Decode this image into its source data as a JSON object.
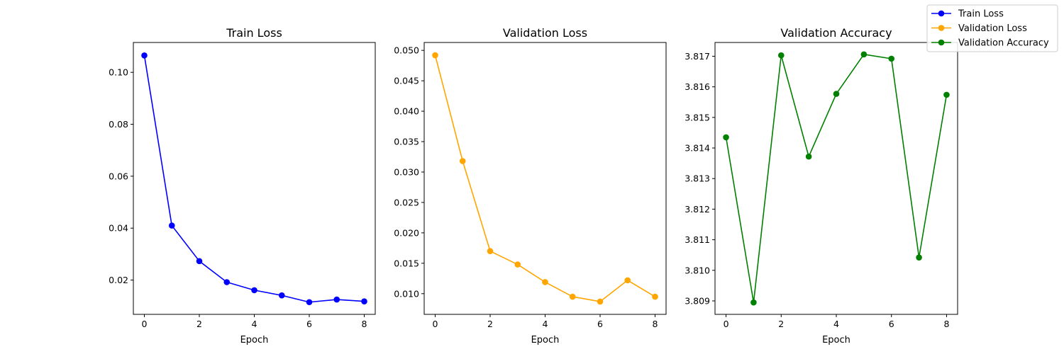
{
  "chart_data": [
    {
      "type": "line",
      "title": "Train Loss",
      "xlabel": "Epoch",
      "ylabel": "",
      "x": [
        0,
        1,
        2,
        3,
        4,
        5,
        6,
        7,
        8
      ],
      "series": [
        {
          "name": "Train Loss",
          "color": "#0000ff",
          "values": [
            0.1065,
            0.041,
            0.0273,
            0.0192,
            0.0161,
            0.0141,
            0.0115,
            0.0125,
            0.0118
          ]
        }
      ],
      "xlim": [
        -0.4,
        8.4
      ],
      "ylim": [
        0.0068,
        0.1115
      ],
      "xticks": [
        0,
        2,
        4,
        6,
        8
      ],
      "yticks": [
        0.02,
        0.04,
        0.06,
        0.08,
        0.1
      ],
      "ytick_labels": [
        "0.02",
        "0.04",
        "0.06",
        "0.08",
        "0.10"
      ],
      "grid": false
    },
    {
      "type": "line",
      "title": "Validation Loss",
      "xlabel": "Epoch",
      "ylabel": "",
      "x": [
        0,
        1,
        2,
        3,
        4,
        5,
        6,
        7,
        8
      ],
      "series": [
        {
          "name": "Validation Loss",
          "color": "#ffa500",
          "values": [
            0.0492,
            0.0318,
            0.017,
            0.0148,
            0.0119,
            0.0095,
            0.0087,
            0.0122,
            0.0095
          ]
        }
      ],
      "xlim": [
        -0.4,
        8.4
      ],
      "ylim": [
        0.0066,
        0.0513
      ],
      "xticks": [
        0,
        2,
        4,
        6,
        8
      ],
      "yticks": [
        0.01,
        0.015,
        0.02,
        0.025,
        0.03,
        0.035,
        0.04,
        0.045,
        0.05
      ],
      "ytick_labels": [
        "0.010",
        "0.015",
        "0.020",
        "0.025",
        "0.030",
        "0.035",
        "0.040",
        "0.045",
        "0.050"
      ],
      "grid": false
    },
    {
      "type": "line",
      "title": "Validation Accuracy",
      "xlabel": "Epoch",
      "ylabel": "",
      "x": [
        0,
        1,
        2,
        3,
        4,
        5,
        6,
        7,
        8
      ],
      "series": [
        {
          "name": "Validation Accuracy",
          "color": "#008000",
          "values": [
            3.81435,
            3.80895,
            3.81703,
            3.81372,
            3.81577,
            3.81706,
            3.81692,
            3.81042,
            3.81574
          ]
        }
      ],
      "xlim": [
        -0.4,
        8.4
      ],
      "ylim": [
        3.80856,
        3.81745
      ],
      "xticks": [
        0,
        2,
        4,
        6,
        8
      ],
      "yticks": [
        3.809,
        3.81,
        3.811,
        3.812,
        3.813,
        3.814,
        3.815,
        3.816,
        3.817
      ],
      "ytick_labels": [
        "3.809",
        "3.810",
        "3.811",
        "3.812",
        "3.813",
        "3.814",
        "3.815",
        "3.816",
        "3.817"
      ],
      "grid": false
    }
  ],
  "legend": {
    "placement": "top-right",
    "entries": [
      {
        "label": "Train Loss",
        "color": "#0000ff"
      },
      {
        "label": "Validation Loss",
        "color": "#ffa500"
      },
      {
        "label": "Validation Accuracy",
        "color": "#008000"
      }
    ]
  }
}
